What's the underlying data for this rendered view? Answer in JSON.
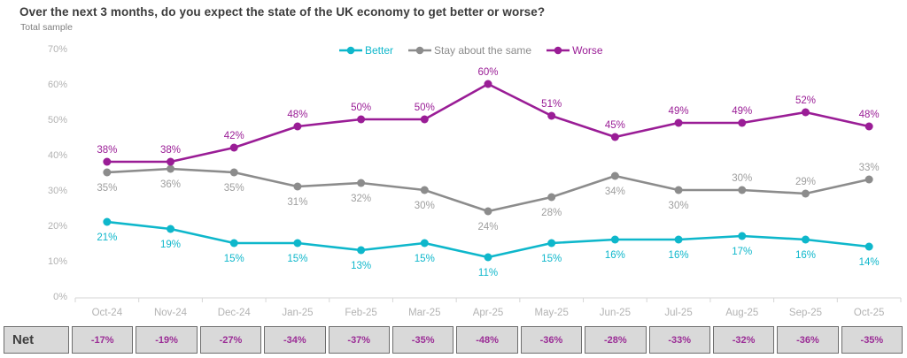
{
  "header": {
    "title": "Over the next 3 months, do you expect the state of the UK economy to get better or worse?",
    "subtitle": "Total sample"
  },
  "colors": {
    "better": "#0eb7cb",
    "same_line": "#8c8c8c",
    "same_label": "#9e9e9e",
    "worse": "#9a1d96",
    "axis_text": "#b3b3b3",
    "axis_line": "#d6d6d6",
    "net_value": "#9b2d96",
    "table_bg": "#d9d9d9",
    "table_border": "#6e6e6e"
  },
  "chart_data": {
    "type": "line",
    "title": "Over the next 3 months, do you expect the state of the UK economy to get better or worse?",
    "subtitle": "Total sample",
    "categories": [
      "Oct-24",
      "Nov-24",
      "Dec-24",
      "Jan-25",
      "Feb-25",
      "Mar-25",
      "Apr-25",
      "May-25",
      "Jun-25",
      "Jul-25",
      "Aug-25",
      "Sep-25",
      "Oct-25"
    ],
    "series": [
      {
        "name": "Stay about the same",
        "color_key": "same_line",
        "label_color_key": "same_label",
        "values": [
          35,
          36,
          35,
          31,
          32,
          30,
          24,
          28,
          34,
          30,
          30,
          29,
          33
        ],
        "label_sides": [
          "below",
          "below",
          "below",
          "below",
          "below",
          "below",
          "below",
          "below",
          "below",
          "below",
          "above",
          "above",
          "above"
        ]
      },
      {
        "name": "Better",
        "color_key": "better",
        "label_color_key": "better",
        "values": [
          21,
          19,
          15,
          15,
          13,
          15,
          11,
          15,
          16,
          16,
          17,
          16,
          14
        ],
        "label_sides": [
          "below",
          "below",
          "below",
          "below",
          "below",
          "below",
          "below",
          "below",
          "below",
          "below",
          "below",
          "below",
          "below"
        ]
      },
      {
        "name": "Worse",
        "color_key": "worse",
        "label_color_key": "worse",
        "values": [
          38,
          38,
          42,
          48,
          50,
          50,
          60,
          51,
          45,
          49,
          49,
          52,
          48
        ],
        "label_sides": [
          "above",
          "above",
          "above",
          "above",
          "above",
          "above",
          "above",
          "above",
          "above",
          "above",
          "above",
          "above",
          "above"
        ]
      }
    ],
    "legend_order": [
      "Better",
      "Stay about the same",
      "Worse"
    ],
    "legend_position": "top-center",
    "ylim": [
      0,
      70
    ],
    "ytick_step": 10,
    "ytick_suffix": "%",
    "data_label_suffix": "%",
    "grid": false,
    "xlabel": "",
    "ylabel": ""
  },
  "net_row": {
    "label": "Net",
    "values": [
      "-17%",
      "-19%",
      "-27%",
      "-34%",
      "-37%",
      "-35%",
      "-48%",
      "-36%",
      "-28%",
      "-33%",
      "-32%",
      "-36%",
      "-35%"
    ]
  }
}
